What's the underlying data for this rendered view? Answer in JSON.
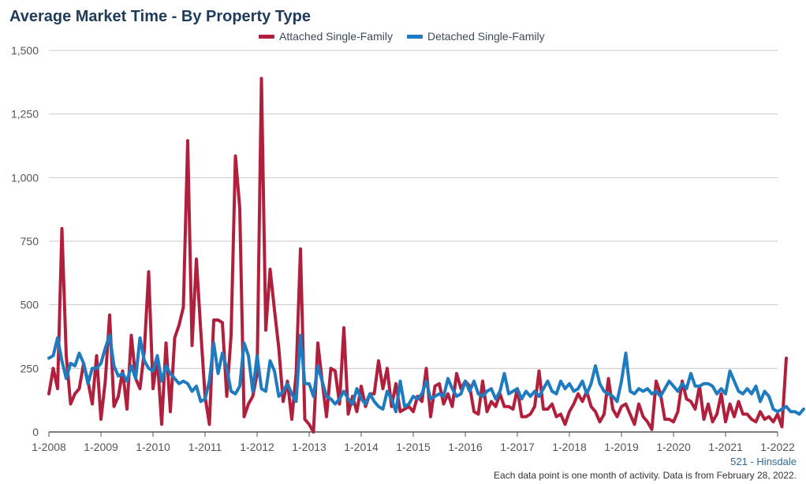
{
  "header": {
    "title": "Average Market Time - By Property Type"
  },
  "footer": {
    "location": "521 - Hinsdale",
    "note": "Each data point is one month of activity. Data is from February 28, 2022."
  },
  "colors": {
    "attached": "#b0203c",
    "detached": "#1f7bbf",
    "grid": "#c8c8c8",
    "axis": "#555555",
    "tick_text": "#555555"
  },
  "chart_data": {
    "type": "line",
    "title": "Average Market Time - By Property Type",
    "xlabel": "",
    "ylabel": "",
    "ylim": [
      0,
      1500
    ],
    "yticks": [
      0,
      250,
      500,
      750,
      1000,
      1250,
      1500
    ],
    "ytick_labels": [
      "0",
      "250",
      "500",
      "750",
      "1,000",
      "1,250",
      "1,500"
    ],
    "xlim": [
      "1-2008",
      "1-2022"
    ],
    "xtick_labels": [
      "1-2008",
      "1-2009",
      "1-2010",
      "1-2011",
      "1-2012",
      "1-2013",
      "1-2014",
      "1-2015",
      "1-2016",
      "1-2017",
      "1-2018",
      "1-2019",
      "1-2020",
      "1-2021",
      "1-2022"
    ],
    "grid": true,
    "legend_position": "top",
    "series": [
      {
        "name": "Attached Single-Family",
        "color": "#b0203c",
        "values": [
          150,
          250,
          170,
          800,
          300,
          110,
          150,
          170,
          270,
          200,
          110,
          300,
          50,
          200,
          460,
          100,
          140,
          240,
          90,
          380,
          210,
          170,
          320,
          630,
          170,
          290,
          30,
          350,
          80,
          370,
          420,
          490,
          1145,
          340,
          680,
          400,
          140,
          30,
          440,
          440,
          430,
          140,
          380,
          1085,
          880,
          60,
          110,
          140,
          230,
          1390,
          400,
          640,
          480,
          330,
          120,
          200,
          50,
          230,
          720,
          50,
          30,
          0,
          350,
          200,
          60,
          250,
          240,
          110,
          410,
          70,
          140,
          80,
          180,
          100,
          150,
          150,
          280,
          170,
          250,
          100,
          190,
          80,
          90,
          100,
          80,
          140,
          120,
          250,
          60,
          180,
          190,
          110,
          150,
          100,
          230,
          170,
          200,
          180,
          80,
          70,
          200,
          80,
          120,
          100,
          150,
          100,
          100,
          90,
          170,
          60,
          60,
          70,
          100,
          240,
          90,
          90,
          110,
          60,
          70,
          30,
          80,
          110,
          150,
          120,
          160,
          100,
          80,
          40,
          70,
          210,
          90,
          60,
          100,
          110,
          70,
          30,
          110,
          60,
          40,
          10,
          200,
          150,
          50,
          50,
          40,
          80,
          200,
          130,
          120,
          90,
          180,
          50,
          110,
          40,
          70,
          150,
          40,
          110,
          60,
          120,
          70,
          70,
          50,
          40,
          80,
          50,
          60,
          40,
          70,
          20,
          290
        ],
        "note_values": "monthly, Jan 2008 - Jan 2022"
      },
      {
        "name": "Detached Single-Family",
        "color": "#1f7bbf",
        "values": [
          290,
          300,
          370,
          280,
          210,
          270,
          260,
          310,
          270,
          190,
          250,
          250,
          270,
          330,
          380,
          260,
          220,
          230,
          200,
          260,
          210,
          370,
          280,
          250,
          240,
          300,
          200,
          260,
          230,
          210,
          190,
          200,
          190,
          160,
          180,
          120,
          130,
          200,
          350,
          230,
          310,
          250,
          160,
          150,
          180,
          350,
          300,
          160,
          300,
          170,
          160,
          280,
          240,
          140,
          160,
          190,
          150,
          120,
          380,
          190,
          190,
          140,
          260,
          200,
          140,
          130,
          110,
          130,
          160,
          130,
          110,
          170,
          130,
          110,
          150,
          120,
          100,
          90,
          160,
          130,
          80,
          200,
          100,
          110,
          140,
          130,
          150,
          200,
          130,
          140,
          150,
          140,
          210,
          170,
          140,
          150,
          200,
          160,
          200,
          150,
          140,
          160,
          170,
          130,
          160,
          230,
          150,
          160,
          170,
          130,
          160,
          140,
          160,
          140,
          170,
          200,
          160,
          150,
          200,
          170,
          190,
          160,
          170,
          200,
          150,
          190,
          260,
          190,
          160,
          150,
          140,
          120,
          200,
          310,
          160,
          150,
          170,
          160,
          170,
          150,
          160,
          140,
          170,
          200,
          180,
          160,
          190,
          170,
          230,
          180,
          180,
          190,
          190,
          180,
          150,
          170,
          150,
          240,
          200,
          160,
          150,
          170,
          150,
          180,
          120,
          160,
          140,
          90,
          80,
          90,
          100,
          80,
          80,
          70,
          90
        ],
        "note_values": "monthly, Jan 2008 - Jan 2022"
      }
    ]
  }
}
